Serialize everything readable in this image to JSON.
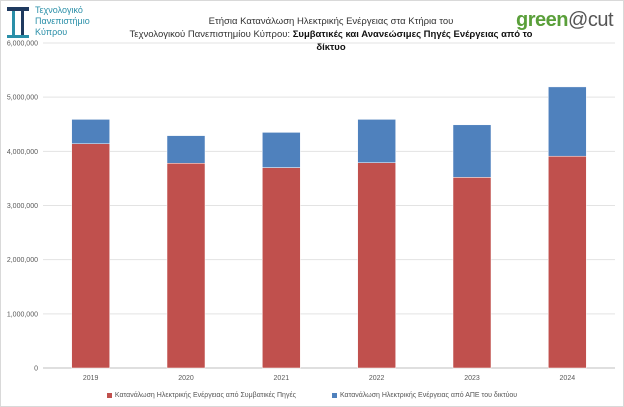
{
  "header": {
    "university_name": [
      "Τεχνολογικό",
      "Πανεπιστήμιο",
      "Κύπρου"
    ],
    "brand_right_a": "green",
    "brand_right_b": "@cut"
  },
  "chart_data": {
    "type": "bar",
    "stacked": true,
    "title_line1": "Ετήσια Κατανάλωση Ηλεκτρικής Ενέργειας στα Κτήρια του",
    "title_line2_normal": "Τεχνολογικού Πανεπιστημίου Κύπρου: ",
    "title_line2_bold": "Συμβατικές και Ανανεώσιμες Πηγές Ενέργειας από το δίκτυο",
    "categories": [
      "2019",
      "2020",
      "2021",
      "2022",
      "2023",
      "2024"
    ],
    "series": [
      {
        "name": "Κατανάλωση Ηλεκτρικής Ενέργειας από Συμβατικές Πηγές",
        "color": "#c0504d",
        "values": [
          4140000,
          3780000,
          3700000,
          3790000,
          3520000,
          3910000
        ]
      },
      {
        "name": "Κατανάλωση Ηλεκτρικής Ενέργειας από ΑΠΕ του δικτύου",
        "color": "#4f81bd",
        "values": [
          450000,
          510000,
          650000,
          800000,
          970000,
          1280000
        ]
      }
    ],
    "ylim": [
      0,
      6000000
    ],
    "yticks": [
      "0",
      "1,000,000",
      "2,000,000",
      "3,000,000",
      "4,000,000",
      "5,000,000",
      "6,000,000"
    ],
    "grid": true,
    "legend_position": "bottom"
  }
}
